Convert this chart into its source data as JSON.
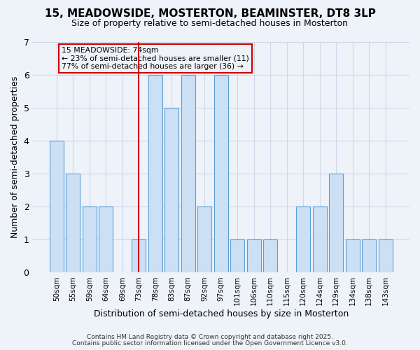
{
  "title": "15, MEADOWSIDE, MOSTERTON, BEAMINSTER, DT8 3LP",
  "subtitle": "Size of property relative to semi-detached houses in Mosterton",
  "xlabel": "Distribution of semi-detached houses by size in Mosterton",
  "ylabel": "Number of semi-detached properties",
  "footnote1": "Contains HM Land Registry data © Crown copyright and database right 2025.",
  "footnote2": "Contains public sector information licensed under the Open Government Licence v3.0.",
  "annotation_title": "15 MEADOWSIDE: 74sqm",
  "annotation_line1": "← 23% of semi-detached houses are smaller (11)",
  "annotation_line2": "77% of semi-detached houses are larger (36) →",
  "bin_labels": [
    "50sqm",
    "55sqm",
    "59sqm",
    "64sqm",
    "69sqm",
    "73sqm",
    "78sqm",
    "83sqm",
    "87sqm",
    "92sqm",
    "97sqm",
    "101sqm",
    "106sqm",
    "110sqm",
    "115sqm",
    "120sqm",
    "124sqm",
    "129sqm",
    "134sqm",
    "138sqm",
    "143sqm"
  ],
  "bin_values": [
    4,
    3,
    2,
    2,
    0,
    1,
    6,
    5,
    6,
    2,
    6,
    1,
    1,
    1,
    0,
    2,
    2,
    3,
    1,
    1,
    1
  ],
  "property_bin_index": 5,
  "bar_color": "#cce0f5",
  "bar_edge_color": "#5a9fd4",
  "highlight_line_color": "#cc0000",
  "annotation_box_color": "#cc0000",
  "background_color": "#eef2f9",
  "ylim": [
    0,
    7
  ],
  "yticks": [
    0,
    1,
    2,
    3,
    4,
    5,
    6,
    7
  ],
  "grid_color": "#d0d8e8"
}
